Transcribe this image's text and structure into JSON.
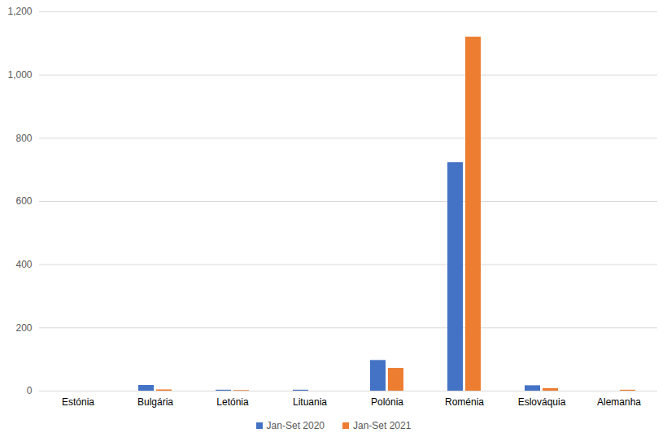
{
  "chart_data": {
    "type": "bar",
    "categories": [
      "Estónia",
      "Bulgária",
      "Letónia",
      "Lituania",
      "Polónia",
      "Roménia",
      "Eslováquia",
      "Alemanha"
    ],
    "series": [
      {
        "name": "Jan-Set 2020",
        "color": "#4472c4",
        "values": [
          0,
          18,
          3,
          3,
          97,
          723,
          17,
          0
        ]
      },
      {
        "name": "Jan-Set 2021",
        "color": "#ed7d31",
        "values": [
          0,
          4,
          2,
          0,
          72,
          1120,
          8,
          3
        ]
      }
    ],
    "ylim": [
      0,
      1200
    ],
    "yticks": [
      0,
      200,
      400,
      600,
      800,
      1000,
      1200
    ],
    "grid": true,
    "legend": "bottom"
  }
}
